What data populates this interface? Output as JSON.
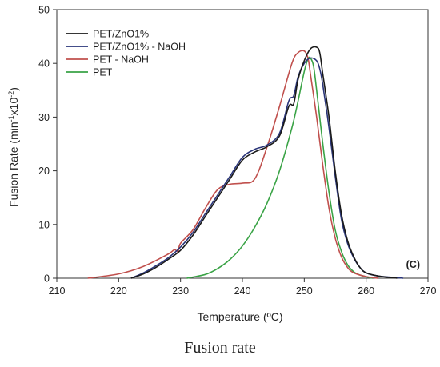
{
  "caption": "Fusion rate",
  "chart_data": {
    "type": "line",
    "xlabel": "Temperature (ºC)",
    "ylabel_main": "Fusion Rate (min",
    "ylabel_sup1": "-1",
    "ylabel_mid": "x10",
    "ylabel_sup2": "-2",
    "ylabel_end": ")",
    "panel_label": "(C)",
    "xlim": [
      210,
      270
    ],
    "ylim": [
      0,
      50
    ],
    "xticks": [
      "210",
      "220",
      "230",
      "240",
      "250",
      "260",
      "270"
    ],
    "yticks": [
      "0",
      "10",
      "20",
      "30",
      "40",
      "50"
    ],
    "grid": false,
    "legend_position": "top-left",
    "series": [
      {
        "name": "PET/ZnO1%",
        "color": "#1a1a1a",
        "points": [
          [
            222,
            0
          ],
          [
            224,
            0.8
          ],
          [
            226,
            2
          ],
          [
            228,
            3.5
          ],
          [
            230,
            5.2
          ],
          [
            232,
            8
          ],
          [
            234,
            11.5
          ],
          [
            236,
            15
          ],
          [
            238,
            18.5
          ],
          [
            240,
            22
          ],
          [
            242,
            23.5
          ],
          [
            244,
            24.5
          ],
          [
            246,
            26.5
          ],
          [
            247.5,
            32
          ],
          [
            248.3,
            32.5
          ],
          [
            249,
            37
          ],
          [
            250,
            40.5
          ],
          [
            251,
            42.7
          ],
          [
            252,
            43
          ],
          [
            252.5,
            42
          ],
          [
            253,
            38
          ],
          [
            254,
            30
          ],
          [
            255,
            20
          ],
          [
            256,
            12
          ],
          [
            257,
            7
          ],
          [
            258,
            4
          ],
          [
            259,
            2
          ],
          [
            260,
            1
          ],
          [
            262,
            0.4
          ],
          [
            265,
            0
          ]
        ]
      },
      {
        "name": "PET/ZnO1% - NaOH",
        "color": "#2a3579",
        "points": [
          [
            222,
            0
          ],
          [
            224,
            1
          ],
          [
            226,
            2.3
          ],
          [
            228,
            3.8
          ],
          [
            230,
            5.8
          ],
          [
            232,
            8.5
          ],
          [
            234,
            12
          ],
          [
            236,
            15.5
          ],
          [
            238,
            19
          ],
          [
            240,
            22.5
          ],
          [
            242,
            24
          ],
          [
            244,
            24.8
          ],
          [
            246,
            27
          ],
          [
            247.5,
            33
          ],
          [
            248.3,
            34
          ],
          [
            249,
            37.5
          ],
          [
            250,
            40
          ],
          [
            251,
            41
          ],
          [
            252,
            40.5
          ],
          [
            252.5,
            39
          ],
          [
            253,
            36
          ],
          [
            254,
            28
          ],
          [
            255,
            19
          ],
          [
            256,
            11
          ],
          [
            257,
            6.5
          ],
          [
            258,
            3.8
          ],
          [
            259,
            2
          ],
          [
            260,
            1
          ],
          [
            262,
            0.4
          ],
          [
            266,
            0
          ]
        ]
      },
      {
        "name": "PET - NaOH",
        "color": "#c0504d",
        "points": [
          [
            215,
            0
          ],
          [
            220,
            0.8
          ],
          [
            224,
            2.2
          ],
          [
            228,
            4.5
          ],
          [
            229,
            5.3
          ],
          [
            229.6,
            5
          ],
          [
            230,
            6.5
          ],
          [
            232,
            9
          ],
          [
            234,
            13
          ],
          [
            236,
            16.5
          ],
          [
            238,
            17.5
          ],
          [
            240,
            17.7
          ],
          [
            242,
            18.5
          ],
          [
            244,
            24.5
          ],
          [
            246,
            32
          ],
          [
            248,
            40
          ],
          [
            249,
            42
          ],
          [
            250,
            42.3
          ],
          [
            250.6,
            41
          ],
          [
            251,
            38
          ],
          [
            252,
            30
          ],
          [
            253,
            21
          ],
          [
            254,
            13
          ],
          [
            255,
            7.5
          ],
          [
            256,
            4
          ],
          [
            257,
            2
          ],
          [
            258,
            1
          ],
          [
            260,
            0.3
          ],
          [
            262,
            0
          ]
        ]
      },
      {
        "name": "PET",
        "color": "#3aa346",
        "points": [
          [
            231,
            0
          ],
          [
            234,
            0.7
          ],
          [
            236,
            1.8
          ],
          [
            238,
            3.5
          ],
          [
            240,
            6
          ],
          [
            242,
            9.5
          ],
          [
            244,
            14
          ],
          [
            246,
            20
          ],
          [
            248,
            28
          ],
          [
            249,
            33
          ],
          [
            250,
            38.5
          ],
          [
            250.6,
            40.8
          ],
          [
            251,
            41
          ],
          [
            251.5,
            39.5
          ],
          [
            252,
            35
          ],
          [
            253,
            25
          ],
          [
            254,
            16
          ],
          [
            255,
            9
          ],
          [
            256,
            5
          ],
          [
            257,
            2.5
          ],
          [
            258,
            1.2
          ],
          [
            259,
            0.6
          ],
          [
            261,
            0
          ]
        ]
      }
    ]
  }
}
